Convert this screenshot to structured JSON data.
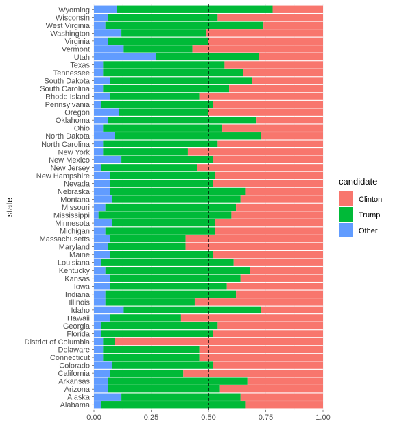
{
  "chart_data": {
    "type": "bar",
    "orientation": "horizontal",
    "stacked": "fill",
    "ylabel": "state",
    "xlabel": "",
    "xlim": [
      0,
      1
    ],
    "xticks": [
      "0.00",
      "0.25",
      "0.50",
      "0.75",
      "1.00"
    ],
    "reference_line": {
      "x": 0.5,
      "style": "dashed"
    },
    "grid": true,
    "legend": {
      "title": "candidate",
      "placement": "right",
      "entries": [
        {
          "name": "Clinton",
          "color": "#F8766D"
        },
        {
          "name": "Trump",
          "color": "#00BA38"
        },
        {
          "name": "Other",
          "color": "#619CFF"
        }
      ]
    },
    "categories": [
      "Alabama",
      "Alaska",
      "Arizona",
      "Arkansas",
      "California",
      "Colorado",
      "Connecticut",
      "Delaware",
      "District of Columbia",
      "Florida",
      "Georgia",
      "Hawaii",
      "Idaho",
      "Illinois",
      "Indiana",
      "Iowa",
      "Kansas",
      "Kentucky",
      "Louisiana",
      "Maine",
      "Maryland",
      "Massachusetts",
      "Michigan",
      "Minnesota",
      "Mississippi",
      "Missouri",
      "Montana",
      "Nebraska",
      "Nevada",
      "New Hampshire",
      "New Jersey",
      "New Mexico",
      "New York",
      "North Carolina",
      "North Dakota",
      "Ohio",
      "Oklahoma",
      "Oregon",
      "Pennsylvania",
      "Rhode Island",
      "South Carolina",
      "South Dakota",
      "Tennessee",
      "Texas",
      "Utah",
      "Vermont",
      "Virginia",
      "Washington",
      "West Virginia",
      "Wisconsin",
      "Wyoming"
    ],
    "series": [
      {
        "name": "Other",
        "color": "#619CFF",
        "values": [
          0.03,
          0.12,
          0.06,
          0.06,
          0.07,
          0.08,
          0.04,
          0.04,
          0.04,
          0.03,
          0.03,
          0.07,
          0.13,
          0.05,
          0.05,
          0.07,
          0.07,
          0.05,
          0.03,
          0.07,
          0.06,
          0.07,
          0.05,
          0.08,
          0.02,
          0.05,
          0.08,
          0.07,
          0.07,
          0.07,
          0.03,
          0.12,
          0.04,
          0.04,
          0.09,
          0.04,
          0.06,
          0.11,
          0.03,
          0.07,
          0.04,
          0.07,
          0.04,
          0.04,
          0.27,
          0.13,
          0.06,
          0.12,
          0.05,
          0.06,
          0.1
        ]
      },
      {
        "name": "Trump",
        "color": "#00BA38",
        "values": [
          0.63,
          0.52,
          0.49,
          0.61,
          0.32,
          0.44,
          0.42,
          0.42,
          0.05,
          0.49,
          0.51,
          0.31,
          0.6,
          0.39,
          0.57,
          0.51,
          0.57,
          0.63,
          0.58,
          0.45,
          0.34,
          0.33,
          0.48,
          0.45,
          0.58,
          0.57,
          0.56,
          0.59,
          0.45,
          0.46,
          0.42,
          0.4,
          0.37,
          0.5,
          0.64,
          0.52,
          0.65,
          0.39,
          0.49,
          0.39,
          0.55,
          0.62,
          0.61,
          0.53,
          0.45,
          0.3,
          0.44,
          0.37,
          0.69,
          0.48,
          0.68
        ]
      },
      {
        "name": "Clinton",
        "color": "#F8766D",
        "values": [
          0.34,
          0.36,
          0.45,
          0.33,
          0.61,
          0.48,
          0.54,
          0.54,
          0.91,
          0.48,
          0.46,
          0.62,
          0.27,
          0.56,
          0.38,
          0.42,
          0.36,
          0.32,
          0.39,
          0.48,
          0.6,
          0.6,
          0.47,
          0.47,
          0.4,
          0.38,
          0.36,
          0.34,
          0.48,
          0.47,
          0.55,
          0.48,
          0.59,
          0.46,
          0.27,
          0.44,
          0.29,
          0.5,
          0.48,
          0.54,
          0.41,
          0.31,
          0.35,
          0.43,
          0.28,
          0.57,
          0.5,
          0.51,
          0.26,
          0.46,
          0.22
        ]
      }
    ]
  }
}
